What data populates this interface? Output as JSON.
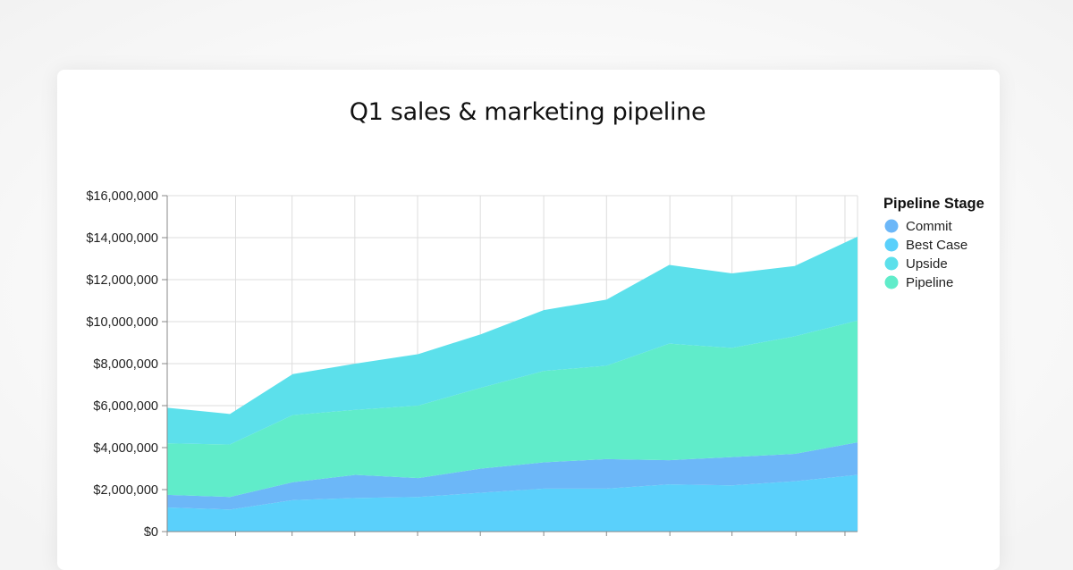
{
  "card": {
    "title": "Q1 sales & marketing pipeline"
  },
  "chart_data": {
    "type": "area",
    "stacked": true,
    "title": "Q1 sales & marketing pipeline",
    "xlabel": "",
    "ylabel": "",
    "ylim": [
      0,
      16000000
    ],
    "y_ticks": [
      0,
      2000000,
      4000000,
      6000000,
      8000000,
      10000000,
      12000000,
      14000000,
      16000000
    ],
    "y_tick_labels": [
      "$0",
      "$2,000,000",
      "$4,000,000",
      "$6,000,000",
      "$8,000,000",
      "$10,000,000",
      "$12,000,000",
      "$14,000,000",
      "$16,000,000"
    ],
    "grid": true,
    "legend": {
      "title": "Pipeline Stage",
      "position": "right"
    },
    "x": [
      0,
      1,
      2,
      3,
      4,
      5,
      6,
      7,
      8,
      9,
      10,
      11
    ],
    "x_grid_positions": [
      0,
      1.09,
      1.99,
      2.99,
      3.99,
      4.99,
      6.0,
      7.0,
      8.01,
      9.0,
      10.02,
      10.8
    ],
    "series": [
      {
        "name": "Best Case",
        "color": "#5ad0fb",
        "values": [
          1150000,
          1050000,
          1500000,
          1600000,
          1650000,
          1850000,
          2050000,
          2050000,
          2250000,
          2200000,
          2400000,
          2700000
        ]
      },
      {
        "name": "Commit",
        "color": "#6cb7f8",
        "values": [
          600000,
          600000,
          850000,
          1100000,
          900000,
          1150000,
          1250000,
          1400000,
          1150000,
          1350000,
          1300000,
          1550000
        ]
      },
      {
        "name": "Pipeline",
        "color": "#60ecca",
        "values": [
          2450000,
          2500000,
          3200000,
          3100000,
          3450000,
          3850000,
          4350000,
          4450000,
          5550000,
          5200000,
          5600000,
          5800000
        ]
      },
      {
        "name": "Upside",
        "color": "#5ce0eb",
        "values": [
          1700000,
          1450000,
          1950000,
          2200000,
          2450000,
          2550000,
          2900000,
          3150000,
          3750000,
          3550000,
          3350000,
          4000000
        ]
      }
    ],
    "legend_entries": [
      {
        "name": "Commit",
        "color": "#6cb7f8"
      },
      {
        "name": "Best Case",
        "color": "#5ad0fb"
      },
      {
        "name": "Upside",
        "color": "#5ce0eb"
      },
      {
        "name": "Pipeline",
        "color": "#60ecca"
      }
    ]
  }
}
